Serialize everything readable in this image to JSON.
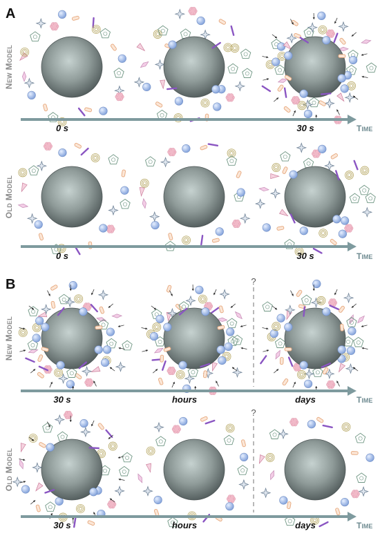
{
  "panels": [
    {
      "letter": "A",
      "rows": [
        {
          "model_label": "New Model",
          "axis_label": "Time",
          "time_labels": [
            "0 s",
            "",
            "30 s"
          ],
          "question_mark": "",
          "corona": [
            "sparse",
            "medium",
            "dense"
          ],
          "arrows": [
            false,
            false,
            true
          ]
        },
        {
          "model_label": "Old Model",
          "axis_label": "Time",
          "time_labels": [
            "0 s",
            "",
            "30 s"
          ],
          "question_mark": "",
          "corona": [
            "sparse",
            "sparse",
            "medium"
          ],
          "arrows": [
            false,
            false,
            false
          ]
        }
      ]
    },
    {
      "letter": "B",
      "rows": [
        {
          "model_label": "New Model",
          "axis_label": "Time",
          "time_labels": [
            "30 s",
            "hours",
            "days"
          ],
          "question_mark": "?",
          "corona": [
            "dense",
            "dense",
            "dense"
          ],
          "arrows": [
            true,
            true,
            true
          ]
        },
        {
          "model_label": "Old Model",
          "axis_label": "Time",
          "time_labels": [
            "30 s",
            "hours",
            "days"
          ],
          "question_mark": "?",
          "corona": [
            "medium",
            "sparse",
            "sparse"
          ],
          "arrows": [
            true,
            false,
            false
          ]
        }
      ]
    }
  ],
  "colors": {
    "sphere_light": "#c6d2d0",
    "sphere_dark": "#525c5c",
    "arrow": "#7e9a9e",
    "label_gray": "#8a8a8a",
    "protein_pink": "#f1b9c8",
    "protein_blue": "#a8c4ec",
    "protein_orange": "#e6a77c",
    "protein_purple": "#8a55c2",
    "protein_green": "#6f9683",
    "protein_olive": "#b3a35b",
    "protein_slate": "#6f8296"
  }
}
